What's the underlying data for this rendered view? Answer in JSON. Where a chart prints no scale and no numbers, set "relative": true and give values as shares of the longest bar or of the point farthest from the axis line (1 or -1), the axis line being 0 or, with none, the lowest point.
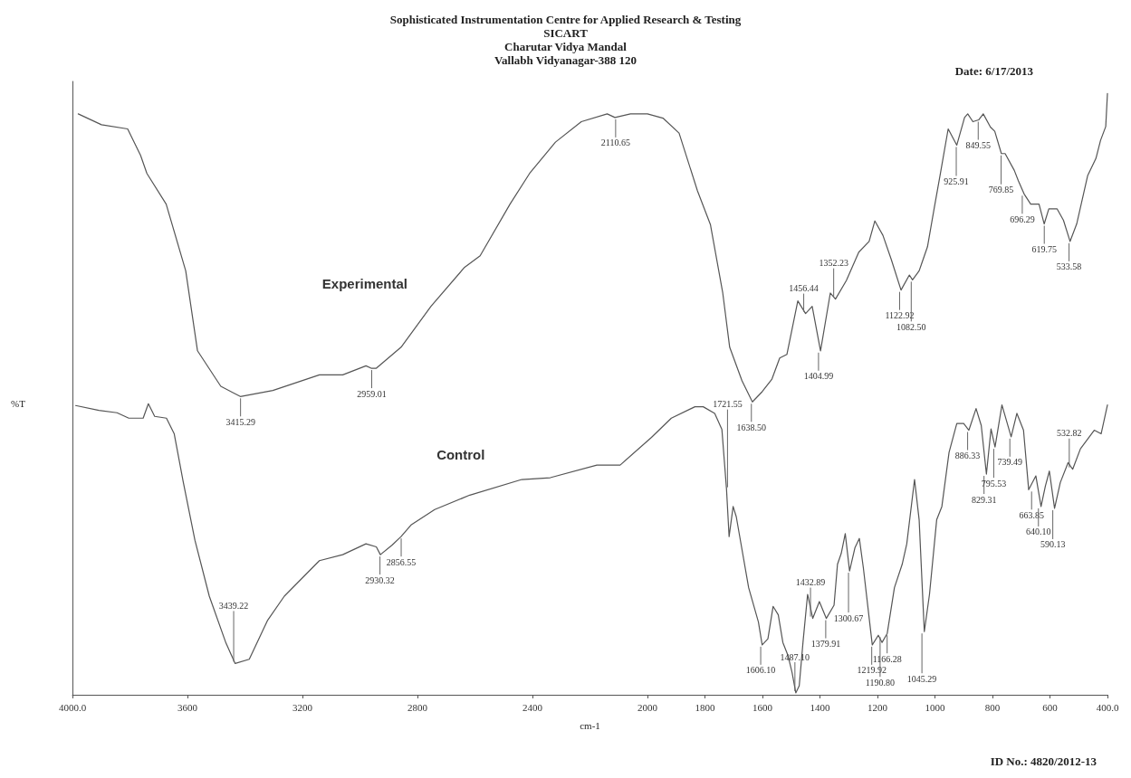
{
  "chart_data": {
    "type": "line",
    "title": "Sophisticated Instrumentation Centre for Applied Research & Testing",
    "subtitle": "SICART\nCharutar Vidya Mandal\nVallabh Vidyanagar-388 120",
    "xlabel": "cm-1",
    "ylabel": "%T",
    "relative": true,
    "xlim": [
      4000,
      400
    ],
    "xticks": [
      {
        "value": 4000,
        "label": "4000.0"
      },
      3600,
      3200,
      2800,
      2400,
      2000,
      1800,
      1600,
      1400,
      1200,
      1000,
      800,
      600,
      {
        "value": 400,
        "label": "400.0"
      }
    ],
    "series": [
      {
        "name": "Experimental",
        "color": "#555555",
        "x": [
          3980,
          3899,
          3808,
          3763,
          3741,
          3674,
          3606,
          3565,
          3484,
          3416,
          3303,
          3141,
          3060,
          2979,
          2961,
          2943,
          2857,
          2753,
          2636,
          2582,
          2478,
          2410,
          2320,
          2230,
          2140,
          2113,
          2059,
          2000,
          1946,
          1890,
          1826,
          1781,
          1738,
          1714,
          1671,
          1635,
          1601,
          1567,
          1540,
          1515,
          1477,
          1450,
          1427,
          1398,
          1364,
          1346,
          1308,
          1265,
          1229,
          1209,
          1181,
          1152,
          1118,
          1089,
          1078,
          1055,
          1026,
          1003,
          981,
          954,
          924,
          897,
          886,
          868,
          848,
          832,
          807,
          792,
          769,
          756,
          724,
          710,
          690,
          667,
          638,
          620,
          604,
          575,
          553,
          530,
          507,
          469,
          440,
          424,
          406,
          400
        ],
        "values": [
          0.966,
          0.948,
          0.941,
          0.897,
          0.867,
          0.816,
          0.705,
          0.572,
          0.513,
          0.496,
          0.506,
          0.532,
          0.532,
          0.547,
          0.543,
          0.543,
          0.578,
          0.646,
          0.711,
          0.73,
          0.816,
          0.867,
          0.919,
          0.953,
          0.966,
          0.96,
          0.966,
          0.966,
          0.959,
          0.934,
          0.838,
          0.782,
          0.668,
          0.578,
          0.522,
          0.487,
          0.504,
          0.525,
          0.56,
          0.566,
          0.655,
          0.634,
          0.646,
          0.572,
          0.668,
          0.658,
          0.689,
          0.736,
          0.754,
          0.788,
          0.764,
          0.724,
          0.673,
          0.698,
          0.69,
          0.705,
          0.745,
          0.808,
          0.867,
          0.941,
          0.914,
          0.96,
          0.966,
          0.953,
          0.956,
          0.966,
          0.944,
          0.937,
          0.9,
          0.9,
          0.872,
          0.855,
          0.833,
          0.816,
          0.816,
          0.783,
          0.808,
          0.808,
          0.789,
          0.754,
          0.783,
          0.863,
          0.892,
          0.922,
          0.945,
          1.0
        ]
      },
      {
        "name": "Control",
        "color": "#555555",
        "x": [
          3989,
          3908,
          3845,
          3804,
          3754,
          3736,
          3714,
          3673,
          3646,
          3615,
          3574,
          3524,
          3466,
          3434,
          3385,
          3321,
          3263,
          3141,
          3060,
          2979,
          2943,
          2929,
          2888,
          2857,
          2821,
          2740,
          2618,
          2437,
          2338,
          2176,
          2095,
          1986,
          1917,
          1835,
          1806,
          1766,
          1741,
          1725,
          1716,
          1702,
          1691,
          1648,
          1614,
          1601,
          1581,
          1563,
          1545,
          1529,
          1511,
          1497,
          1484,
          1472,
          1459,
          1443,
          1425,
          1402,
          1378,
          1351,
          1339,
          1326,
          1312,
          1297,
          1278,
          1263,
          1249,
          1218,
          1197,
          1184,
          1166,
          1141,
          1114,
          1098,
          1071,
          1055,
          1037,
          1019,
          994,
          976,
          951,
          924,
          900,
          882,
          857,
          839,
          821,
          805,
          791,
          767,
          735,
          715,
          692,
          674,
          649,
          631,
          616,
          602,
          584,
          564,
          537,
          521,
          494,
          446,
          422,
          400
        ],
        "values": [
          0.481,
          0.473,
          0.469,
          0.46,
          0.46,
          0.484,
          0.463,
          0.46,
          0.434,
          0.355,
          0.257,
          0.164,
          0.086,
          0.052,
          0.059,
          0.124,
          0.164,
          0.223,
          0.233,
          0.251,
          0.246,
          0.233,
          0.249,
          0.263,
          0.283,
          0.308,
          0.332,
          0.358,
          0.361,
          0.382,
          0.382,
          0.428,
          0.46,
          0.479,
          0.479,
          0.468,
          0.441,
          0.342,
          0.263,
          0.313,
          0.296,
          0.178,
          0.121,
          0.083,
          0.093,
          0.147,
          0.133,
          0.087,
          0.065,
          0.037,
          0.003,
          0.015,
          0.087,
          0.167,
          0.127,
          0.155,
          0.127,
          0.149,
          0.217,
          0.235,
          0.268,
          0.206,
          0.245,
          0.26,
          0.211,
          0.083,
          0.099,
          0.087,
          0.102,
          0.178,
          0.217,
          0.251,
          0.358,
          0.291,
          0.105,
          0.167,
          0.291,
          0.313,
          0.403,
          0.451,
          0.451,
          0.44,
          0.476,
          0.448,
          0.367,
          0.442,
          0.412,
          0.482,
          0.429,
          0.468,
          0.44,
          0.341,
          0.364,
          0.313,
          0.347,
          0.372,
          0.31,
          0.353,
          0.386,
          0.375,
          0.409,
          0.44,
          0.434,
          0.482
        ]
      }
    ],
    "annotations": [
      "Date: 6/17/2013",
      "ID No.: 4820/2012-13",
      {
        "text": "3415.29",
        "x": 3415.29,
        "y": 0.496
      },
      {
        "text": "2959.01",
        "x": 2959.01,
        "y": 0.543
      },
      {
        "text": "2110.65",
        "x": 2110.65,
        "y": 0.96
      },
      {
        "text": "1638.50",
        "x": 1638.5,
        "y": 0.487
      },
      {
        "text": "1456.44",
        "x": 1456.44,
        "y": 0.634
      },
      {
        "text": "1404.99",
        "x": 1404.99,
        "y": 0.572
      },
      {
        "text": "1352.23",
        "x": 1352.23,
        "y": 0.658
      },
      {
        "text": "1122.92",
        "x": 1122.92,
        "y": 0.673
      },
      {
        "text": "1082.50",
        "x": 1082.5,
        "y": 0.69
      },
      {
        "text": "925.91",
        "x": 925.91,
        "y": 0.914
      },
      {
        "text": "849.55",
        "x": 849.55,
        "y": 0.956
      },
      {
        "text": "769.85",
        "x": 769.85,
        "y": 0.9
      },
      {
        "text": "696.29",
        "x": 696.29,
        "y": 0.833
      },
      {
        "text": "619.75",
        "x": 619.75,
        "y": 0.783
      },
      {
        "text": "533.58",
        "x": 533.58,
        "y": 0.754
      },
      {
        "text": "3439.22",
        "x": 3439.22,
        "y": 0.052
      },
      {
        "text": "2930.32",
        "x": 2930.32,
        "y": 0.233
      },
      {
        "text": "2856.55",
        "x": 2856.55,
        "y": 0.263
      },
      {
        "text": "1721.55",
        "x": 1721.55,
        "y": 0.342
      },
      {
        "text": "1606.10",
        "x": 1606.1,
        "y": 0.083
      },
      {
        "text": "1487.10",
        "x": 1487.1,
        "y": 0.003
      },
      {
        "text": "1432.89",
        "x": 1432.89,
        "y": 0.127
      },
      {
        "text": "1379.91",
        "x": 1379.91,
        "y": 0.127
      },
      {
        "text": "1300.67",
        "x": 1300.67,
        "y": 0.206
      },
      {
        "text": "1219.92",
        "x": 1219.92,
        "y": 0.083
      },
      {
        "text": "1190.80",
        "x": 1190.8,
        "y": 0.099
      },
      {
        "text": "1166.28",
        "x": 1166.28,
        "y": 0.102
      },
      {
        "text": "1045.29",
        "x": 1045.29,
        "y": 0.105
      },
      {
        "text": "886.33",
        "x": 886.33,
        "y": 0.44
      },
      {
        "text": "829.31",
        "x": 829.31,
        "y": 0.367
      },
      {
        "text": "795.53",
        "x": 795.53,
        "y": 0.412
      },
      {
        "text": "739.49",
        "x": 739.49,
        "y": 0.429
      },
      {
        "text": "663.85",
        "x": 663.85,
        "y": 0.341
      },
      {
        "text": "640.10",
        "x": 640.1,
        "y": 0.313
      },
      {
        "text": "590.13",
        "x": 590.13,
        "y": 0.31
      },
      {
        "text": "532.82",
        "x": 532.82,
        "y": 0.375
      }
    ]
  }
}
